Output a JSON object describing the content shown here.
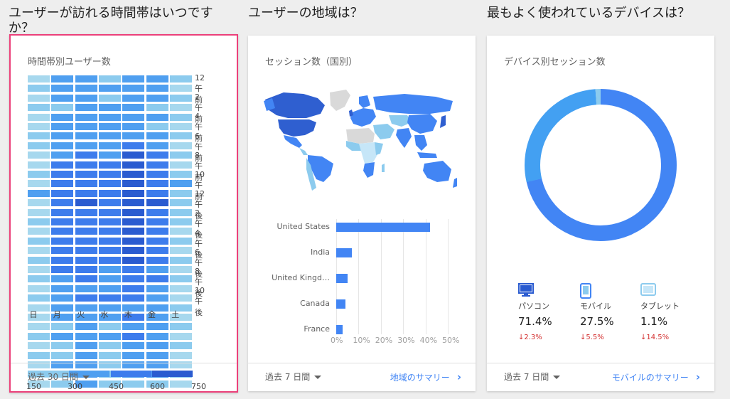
{
  "sections": {
    "time": "ユーザーが訪れる時間帯はいつですか？",
    "region": "ユーザーの地域は？",
    "device": "最もよく使われているデバイスは？"
  },
  "time_card": {
    "title": "時間帯別ユーザー数",
    "y_labels": [
      "12午前",
      "2午前",
      "4午前",
      "6午前",
      "8午前",
      "10午前",
      "12午後",
      "2午後",
      "4午後",
      "6午後",
      "8午後",
      "10午後"
    ],
    "days": [
      "日",
      "月",
      "火",
      "水",
      "木",
      "金",
      "土"
    ],
    "scale_labels": [
      "150",
      "300",
      "450",
      "600",
      "750"
    ],
    "colors": [
      "#a7d8ee",
      "#8ccbee",
      "#4f9ff0",
      "#3d7cec",
      "#2a5bd0"
    ],
    "grid": [
      [
        0,
        2,
        2,
        1,
        2,
        2,
        1
      ],
      [
        1,
        2,
        2,
        2,
        2,
        2,
        0
      ],
      [
        0,
        2,
        2,
        1,
        2,
        2,
        1
      ],
      [
        1,
        1,
        2,
        2,
        2,
        1,
        0
      ],
      [
        0,
        2,
        2,
        2,
        2,
        2,
        1
      ],
      [
        0,
        2,
        2,
        2,
        2,
        1,
        0
      ],
      [
        1,
        2,
        2,
        2,
        2,
        2,
        1
      ],
      [
        1,
        2,
        2,
        2,
        3,
        2,
        0
      ],
      [
        0,
        2,
        3,
        2,
        4,
        3,
        1
      ],
      [
        0,
        3,
        3,
        3,
        4,
        3,
        0
      ],
      [
        1,
        3,
        3,
        3,
        4,
        3,
        1
      ],
      [
        0,
        3,
        3,
        3,
        4,
        3,
        2
      ],
      [
        2,
        3,
        3,
        3,
        4,
        3,
        1
      ],
      [
        0,
        3,
        4,
        3,
        4,
        4,
        1
      ],
      [
        0,
        3,
        3,
        3,
        4,
        3,
        1
      ],
      [
        1,
        3,
        3,
        3,
        4,
        3,
        1
      ],
      [
        0,
        3,
        3,
        3,
        4,
        3,
        0
      ],
      [
        1,
        3,
        3,
        3,
        4,
        3,
        1
      ],
      [
        0,
        3,
        3,
        3,
        4,
        3,
        0
      ],
      [
        1,
        3,
        3,
        3,
        4,
        3,
        1
      ],
      [
        0,
        3,
        3,
        2,
        3,
        2,
        0
      ],
      [
        1,
        2,
        3,
        2,
        3,
        3,
        1
      ],
      [
        0,
        2,
        2,
        2,
        3,
        2,
        0
      ],
      [
        1,
        2,
        3,
        3,
        3,
        2,
        0
      ],
      [
        0,
        2,
        2,
        2,
        2,
        2,
        1
      ],
      [
        0,
        2,
        2,
        2,
        3,
        2,
        0
      ],
      [
        0,
        1,
        2,
        1,
        2,
        2,
        1
      ],
      [
        1,
        2,
        2,
        2,
        3,
        2,
        0
      ],
      [
        0,
        1,
        2,
        1,
        2,
        2,
        1
      ],
      [
        1,
        1,
        2,
        1,
        2,
        2,
        0
      ],
      [
        0,
        2,
        2,
        1,
        2,
        2,
        0
      ],
      [
        0,
        1,
        2,
        1,
        2,
        2,
        1
      ],
      [
        0,
        1,
        2,
        1,
        1,
        1,
        0
      ]
    ],
    "footer_range": "過去 30 日間"
  },
  "region_card": {
    "title": "セッション数（国別）",
    "countries": [
      "United States",
      "India",
      "United Kingd…",
      "Canada",
      "France"
    ],
    "footer_range": "過去 7 日間",
    "footer_link": "地域のサマリー",
    "map_colors": {
      "high": "#2f5fd0",
      "mid": "#4285f4",
      "low": "#8ccbee",
      "lowest": "#c6e6f8",
      "none": "#d9d9d9"
    }
  },
  "chart_data": {
    "type": "bar",
    "orientation": "horizontal",
    "title": "セッション数（国別）",
    "categories": [
      "United States",
      "India",
      "United Kingd…",
      "Canada",
      "France"
    ],
    "values": [
      42,
      7,
      5,
      4,
      3
    ],
    "xlim": [
      0,
      50
    ],
    "x_ticks": [
      "0%",
      "10%",
      "20%",
      "30%",
      "40%",
      "50%"
    ],
    "grid": true,
    "color": "#4285f4"
  },
  "device_card": {
    "title": "デバイス別セッション数",
    "devices": [
      {
        "name": "パソコン",
        "percent": "71.4%",
        "delta": "2.3%",
        "share": 71.4,
        "color": "#4285f4",
        "icon": "desktop-icon"
      },
      {
        "name": "モバイル",
        "percent": "27.5%",
        "delta": "5.5%",
        "share": 27.5,
        "color": "#43a0f2",
        "icon": "mobile-phone-icon"
      },
      {
        "name": "タブレット",
        "percent": "1.1%",
        "delta": "14.5%",
        "share": 1.1,
        "color": "#8ccbee",
        "icon": "tablet-icon"
      }
    ],
    "footer_range": "過去 7 日間",
    "footer_link": "モバイルのサマリー"
  }
}
